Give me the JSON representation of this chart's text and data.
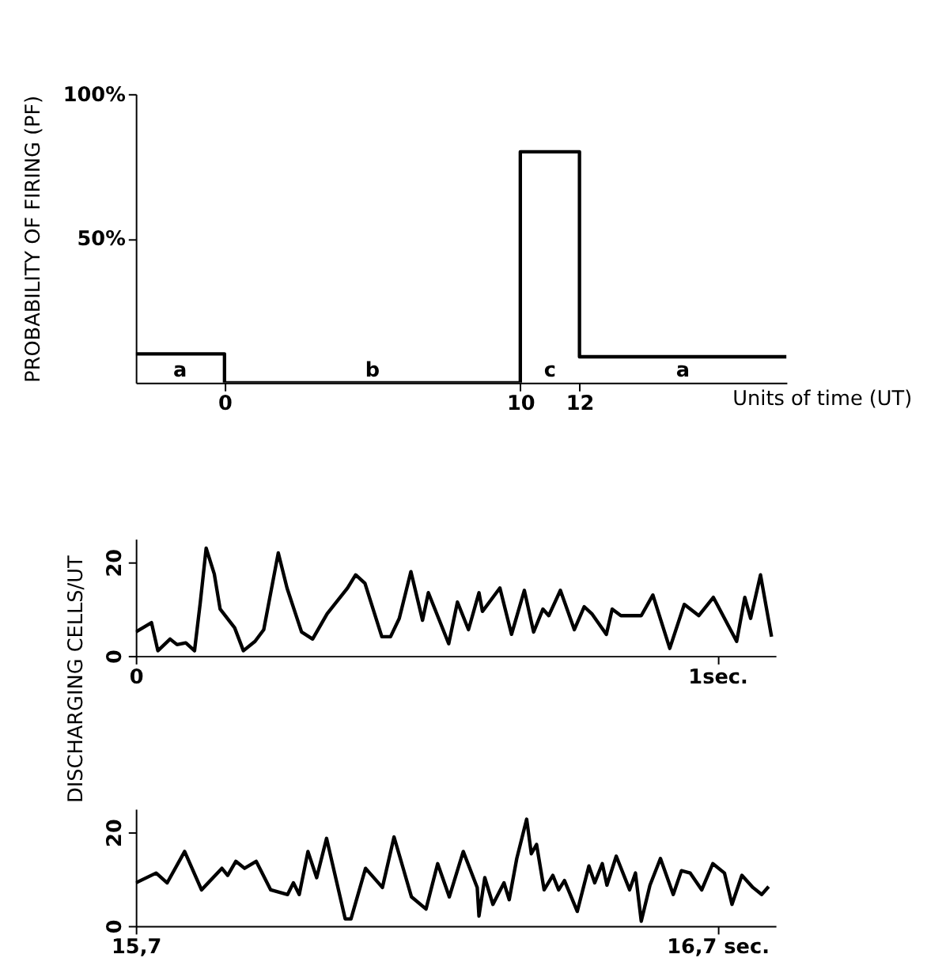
{
  "chart_data": [
    {
      "type": "step",
      "ylabel": "PROBABILITY OF FIRING (PF)",
      "xlabel": "Units of time (UT)",
      "series": [
        {
          "color": "#000000",
          "x": [
            -3,
            0,
            10,
            12,
            19
          ],
          "values": [
            10,
            0,
            80,
            9,
            9
          ]
        }
      ],
      "xlim": [
        -3,
        19
      ],
      "xticks": [
        0,
        10,
        12
      ],
      "ylim": [
        0,
        100
      ],
      "yticks": [
        {
          "value": 50,
          "label": "50%"
        },
        {
          "value": 100,
          "label": "100%"
        }
      ],
      "annotations": [
        "a",
        "b",
        "c",
        "a"
      ]
    },
    {
      "type": "line",
      "ylabel": "DISCHARGING CELLS/UT",
      "series": [
        {
          "color": "#000000",
          "x": [
            0,
            0.027,
            0.038,
            0.059,
            0.071,
            0.086,
            0.101,
            0.111,
            0.121,
            0.135,
            0.145,
            0.17,
            0.185,
            0.205,
            0.22,
            0.245,
            0.26,
            0.285,
            0.304,
            0.329,
            0.364,
            0.378,
            0.394,
            0.423,
            0.438,
            0.453,
            0.473,
            0.493,
            0.503,
            0.538,
            0.553,
            0.572,
            0.59,
            0.596,
            0.626,
            0.646,
            0.668,
            0.684,
            0.7,
            0.71,
            0.73,
            0.754,
            0.771,
            0.784,
            0.809,
            0.819,
            0.834,
            0.869,
            0.889,
            0.918,
            0.943,
            0.968,
            0.993,
            1.033,
            1.047,
            1.057,
            1.074,
            1.093
          ],
          "values": [
            5.1,
            7.1,
            1.1,
            3.6,
            2.4,
            2.8,
            1.1,
            11.5,
            23,
            17.5,
            10,
            6,
            1.1,
            3.1,
            5.6,
            22,
            14.5,
            5.1,
            3.6,
            9,
            14.5,
            17.3,
            15.5,
            4.1,
            4.1,
            8,
            18,
            7.6,
            13.5,
            2.6,
            11.5,
            5.6,
            13.5,
            9.5,
            14.5,
            4.6,
            14,
            5.1,
            10,
            8.6,
            14,
            5.6,
            10.5,
            9,
            4.6,
            10,
            8.6,
            8.6,
            13,
            1.6,
            11,
            8.6,
            12.5,
            3.1,
            12.5,
            8,
            17.3,
            4.1
          ]
        }
      ],
      "xlim": [
        0,
        1.1
      ],
      "xticks": [
        0,
        {
          "value": 1,
          "label": "1sec."
        }
      ],
      "ylim": [
        0,
        25
      ],
      "yticks": [
        0,
        20
      ]
    },
    {
      "type": "line",
      "series": [
        {
          "color": "#000000",
          "x": [
            15.7,
            15.735,
            15.754,
            15.784,
            15.813,
            15.848,
            15.858,
            15.872,
            15.887,
            15.907,
            15.932,
            15.961,
            15.971,
            15.981,
            15.996,
            16.011,
            16.028,
            16.06,
            16.07,
            16.095,
            16.124,
            16.144,
            16.174,
            16.199,
            16.219,
            16.239,
            16.263,
            16.287,
            16.29,
            16.3,
            16.314,
            16.333,
            16.342,
            16.355,
            16.372,
            16.38,
            16.389,
            16.402,
            16.417,
            16.427,
            16.437,
            16.459,
            16.479,
            16.489,
            16.502,
            16.51,
            16.526,
            16.549,
            16.559,
            16.569,
            16.584,
            16.602,
            16.624,
            16.638,
            16.653,
            16.673,
            16.692,
            16.712,
            16.725,
            16.742,
            16.761,
            16.776,
            16.788
          ],
          "values": [
            9.2,
            11.3,
            9.2,
            15.9,
            7.7,
            12.3,
            10.8,
            13.8,
            12.3,
            13.8,
            7.7,
            6.7,
            9.2,
            6.7,
            15.9,
            10.3,
            18.7,
            1.5,
            1.5,
            12.3,
            8.2,
            19,
            6.2,
            3.6,
            13.3,
            6.2,
            15.9,
            8.2,
            2.1,
            10.3,
            4.6,
            9.2,
            5.6,
            14.4,
            22.8,
            15.4,
            17.4,
            7.7,
            10.8,
            7.7,
            9.7,
            3.1,
            12.8,
            9.2,
            13.3,
            8.7,
            14.9,
            7.7,
            11.3,
            1,
            8.7,
            14.4,
            6.7,
            11.8,
            11.3,
            7.7,
            13.3,
            11.3,
            4.6,
            10.8,
            8.2,
            6.7,
            8.4
          ]
        }
      ],
      "xlim": [
        15.7,
        16.8
      ],
      "xticks": [
        {
          "value": 15.7,
          "label": "15,7"
        },
        {
          "value": 16.7,
          "label": "16,7 sec."
        }
      ],
      "ylim": [
        0,
        25
      ],
      "yticks": [
        0,
        20
      ]
    }
  ]
}
